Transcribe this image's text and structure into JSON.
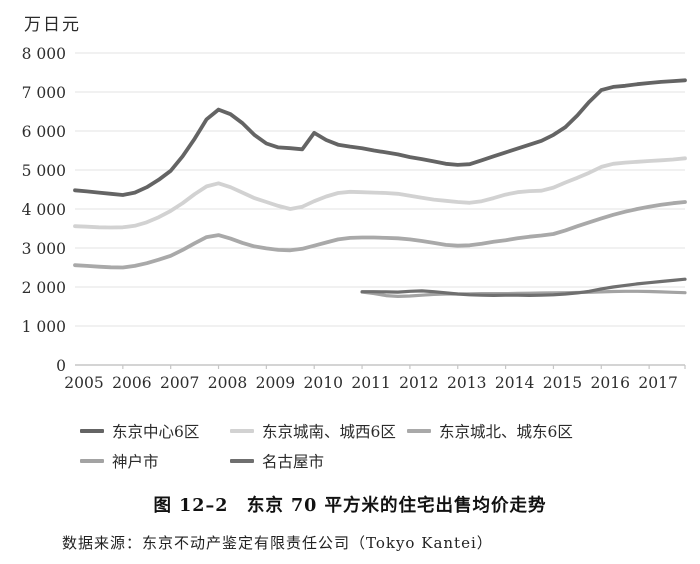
{
  "title": "图 12–2　东京 70 平方米的住宅出售均价走势",
  "source": "数据来源：东京不动产鉴定有限责任公司（Tokyo Kantei）",
  "chart_data": {
    "type": "line",
    "unit": "万日元",
    "title": "图 12–2 东京 70 平方米的住宅出售均价走势",
    "xlabel": "",
    "ylabel": "万日元",
    "ylim": [
      0,
      8000
    ],
    "y_ticks": [
      0,
      1000,
      2000,
      3000,
      4000,
      5000,
      6000,
      7000,
      8000
    ],
    "y_tick_labels": [
      "0",
      "1 000",
      "2 000",
      "3 000",
      "4 000",
      "5 000",
      "6 000",
      "7 000",
      "8 000"
    ],
    "x_tick_labels": [
      "2005",
      "2006",
      "2007",
      "2008",
      "2009",
      "2010",
      "2011",
      "2012",
      "2013",
      "2014",
      "2015",
      "2016",
      "2017"
    ],
    "x_start_year": 2005,
    "x_step_years": 0.25,
    "grid": "horizontal",
    "legend_position": "bottom",
    "legend_rows": [
      [
        0,
        1,
        2
      ],
      [
        3,
        4
      ]
    ],
    "colors": {
      "grid": "#e3e3e3",
      "axis": "#c6c6c6",
      "text": "#2e2e2e"
    },
    "series": [
      {
        "name": "东京中心6区",
        "color": "#646464",
        "width": 3.8,
        "start_year": 2005,
        "values": [
          4480,
          4450,
          4420,
          4390,
          4360,
          4420,
          4560,
          4750,
          4980,
          5350,
          5800,
          6300,
          6550,
          6430,
          6200,
          5900,
          5680,
          5580,
          5560,
          5530,
          5950,
          5770,
          5650,
          5600,
          5560,
          5500,
          5450,
          5400,
          5330,
          5280,
          5220,
          5160,
          5130,
          5150,
          5250,
          5350,
          5450,
          5550,
          5650,
          5750,
          5900,
          6100,
          6400,
          6750,
          7050,
          7130,
          7160,
          7200,
          7230,
          7260,
          7280,
          7300
        ]
      },
      {
        "name": "东京城南、城西6区",
        "color": "#d2d2d2",
        "width": 3.8,
        "start_year": 2005,
        "values": [
          3560,
          3545,
          3530,
          3525,
          3530,
          3570,
          3660,
          3790,
          3950,
          4150,
          4380,
          4580,
          4660,
          4560,
          4420,
          4280,
          4180,
          4080,
          4000,
          4060,
          4200,
          4320,
          4410,
          4440,
          4430,
          4420,
          4410,
          4390,
          4340,
          4290,
          4240,
          4210,
          4180,
          4160,
          4200,
          4280,
          4370,
          4430,
          4460,
          4470,
          4550,
          4680,
          4800,
          4930,
          5080,
          5160,
          5190,
          5210,
          5230,
          5250,
          5270,
          5300
        ]
      },
      {
        "name": "东京城北、城东6区",
        "color": "#a9a9a9",
        "width": 3.8,
        "start_year": 2005,
        "values": [
          2560,
          2540,
          2520,
          2505,
          2500,
          2540,
          2610,
          2700,
          2800,
          2950,
          3120,
          3280,
          3330,
          3240,
          3130,
          3040,
          2990,
          2950,
          2940,
          2980,
          3060,
          3140,
          3220,
          3260,
          3270,
          3270,
          3260,
          3250,
          3220,
          3180,
          3130,
          3080,
          3060,
          3070,
          3110,
          3160,
          3200,
          3250,
          3290,
          3320,
          3360,
          3450,
          3560,
          3660,
          3760,
          3850,
          3930,
          4000,
          4060,
          4110,
          4150,
          4180
        ]
      },
      {
        "name": "神户市",
        "color": "#a3a3a3",
        "width": 3.2,
        "start_year": 2011,
        "values": [
          1870,
          1830,
          1780,
          1760,
          1770,
          1790,
          1810,
          1820,
          1820,
          1825,
          1830,
          1830,
          1830,
          1835,
          1840,
          1845,
          1850,
          1855,
          1860,
          1865,
          1875,
          1885,
          1890,
          1890,
          1885,
          1875,
          1865,
          1855
        ]
      },
      {
        "name": "名古屋市",
        "color": "#6f6f6f",
        "width": 3.2,
        "start_year": 2011,
        "values": [
          1880,
          1880,
          1875,
          1870,
          1890,
          1900,
          1880,
          1850,
          1820,
          1800,
          1790,
          1785,
          1790,
          1790,
          1785,
          1790,
          1800,
          1820,
          1850,
          1890,
          1950,
          2000,
          2040,
          2080,
          2110,
          2140,
          2170,
          2200
        ]
      }
    ]
  }
}
